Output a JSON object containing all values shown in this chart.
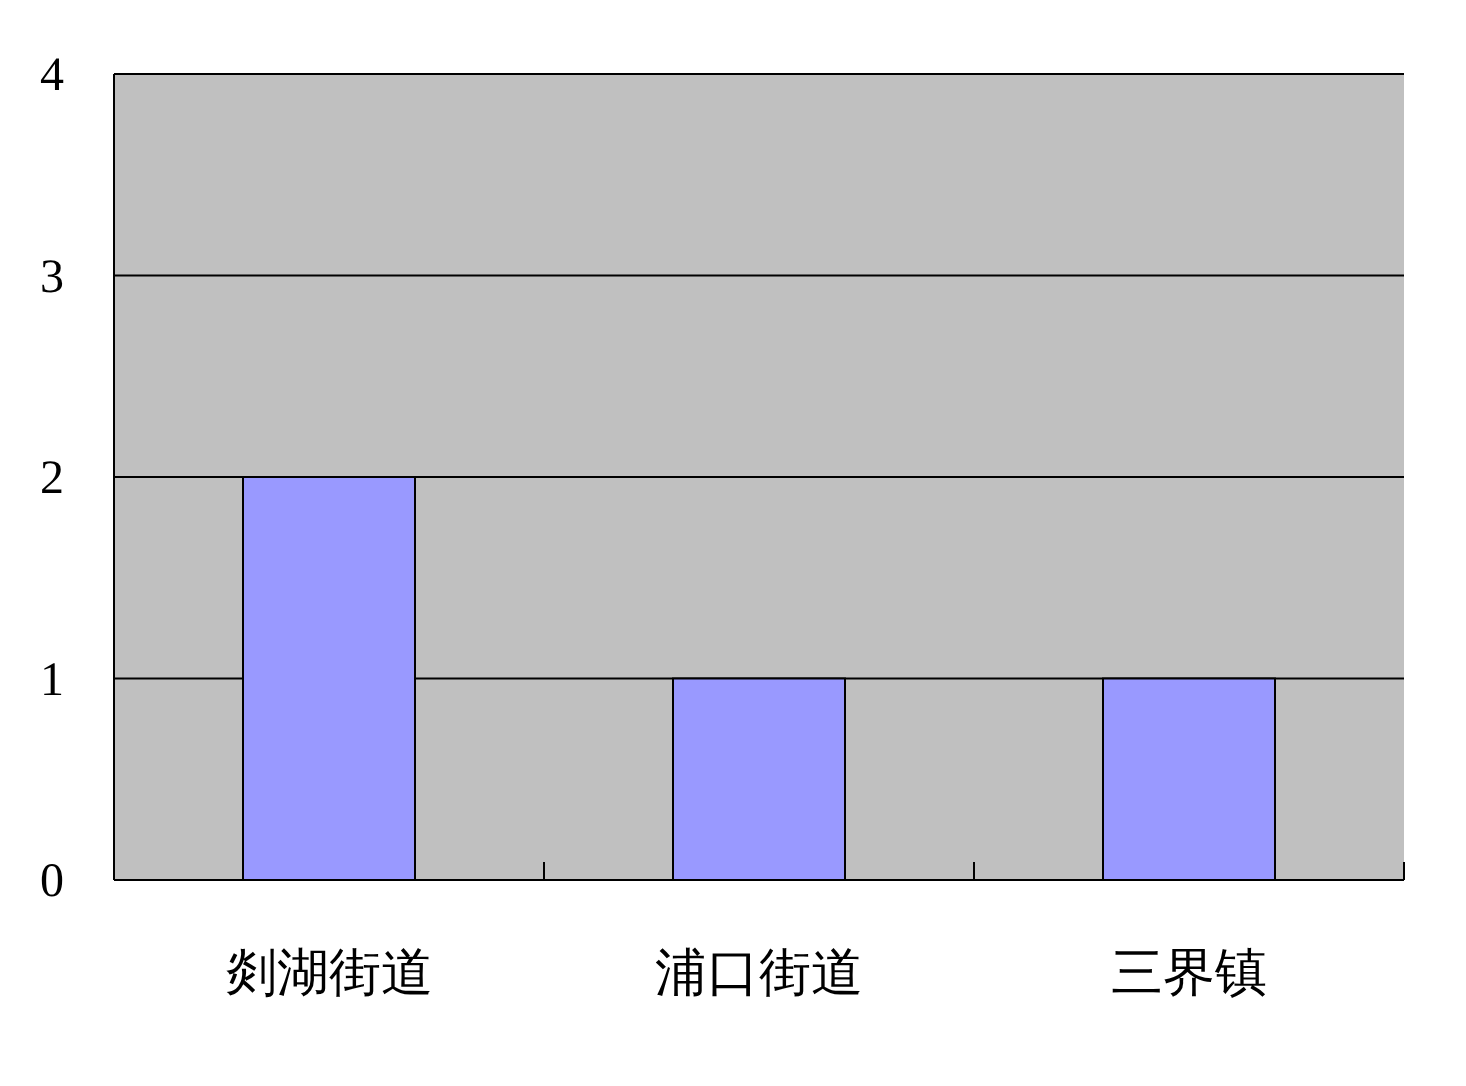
{
  "chart_data": {
    "type": "bar",
    "categories": [
      "剡湖街道",
      "浦口街道",
      "三界镇"
    ],
    "values": [
      2,
      1,
      1
    ],
    "color": "#9999ff",
    "ylim": [
      0,
      4
    ],
    "yticks": [
      0,
      1,
      2,
      3,
      4
    ],
    "grid": "y"
  }
}
